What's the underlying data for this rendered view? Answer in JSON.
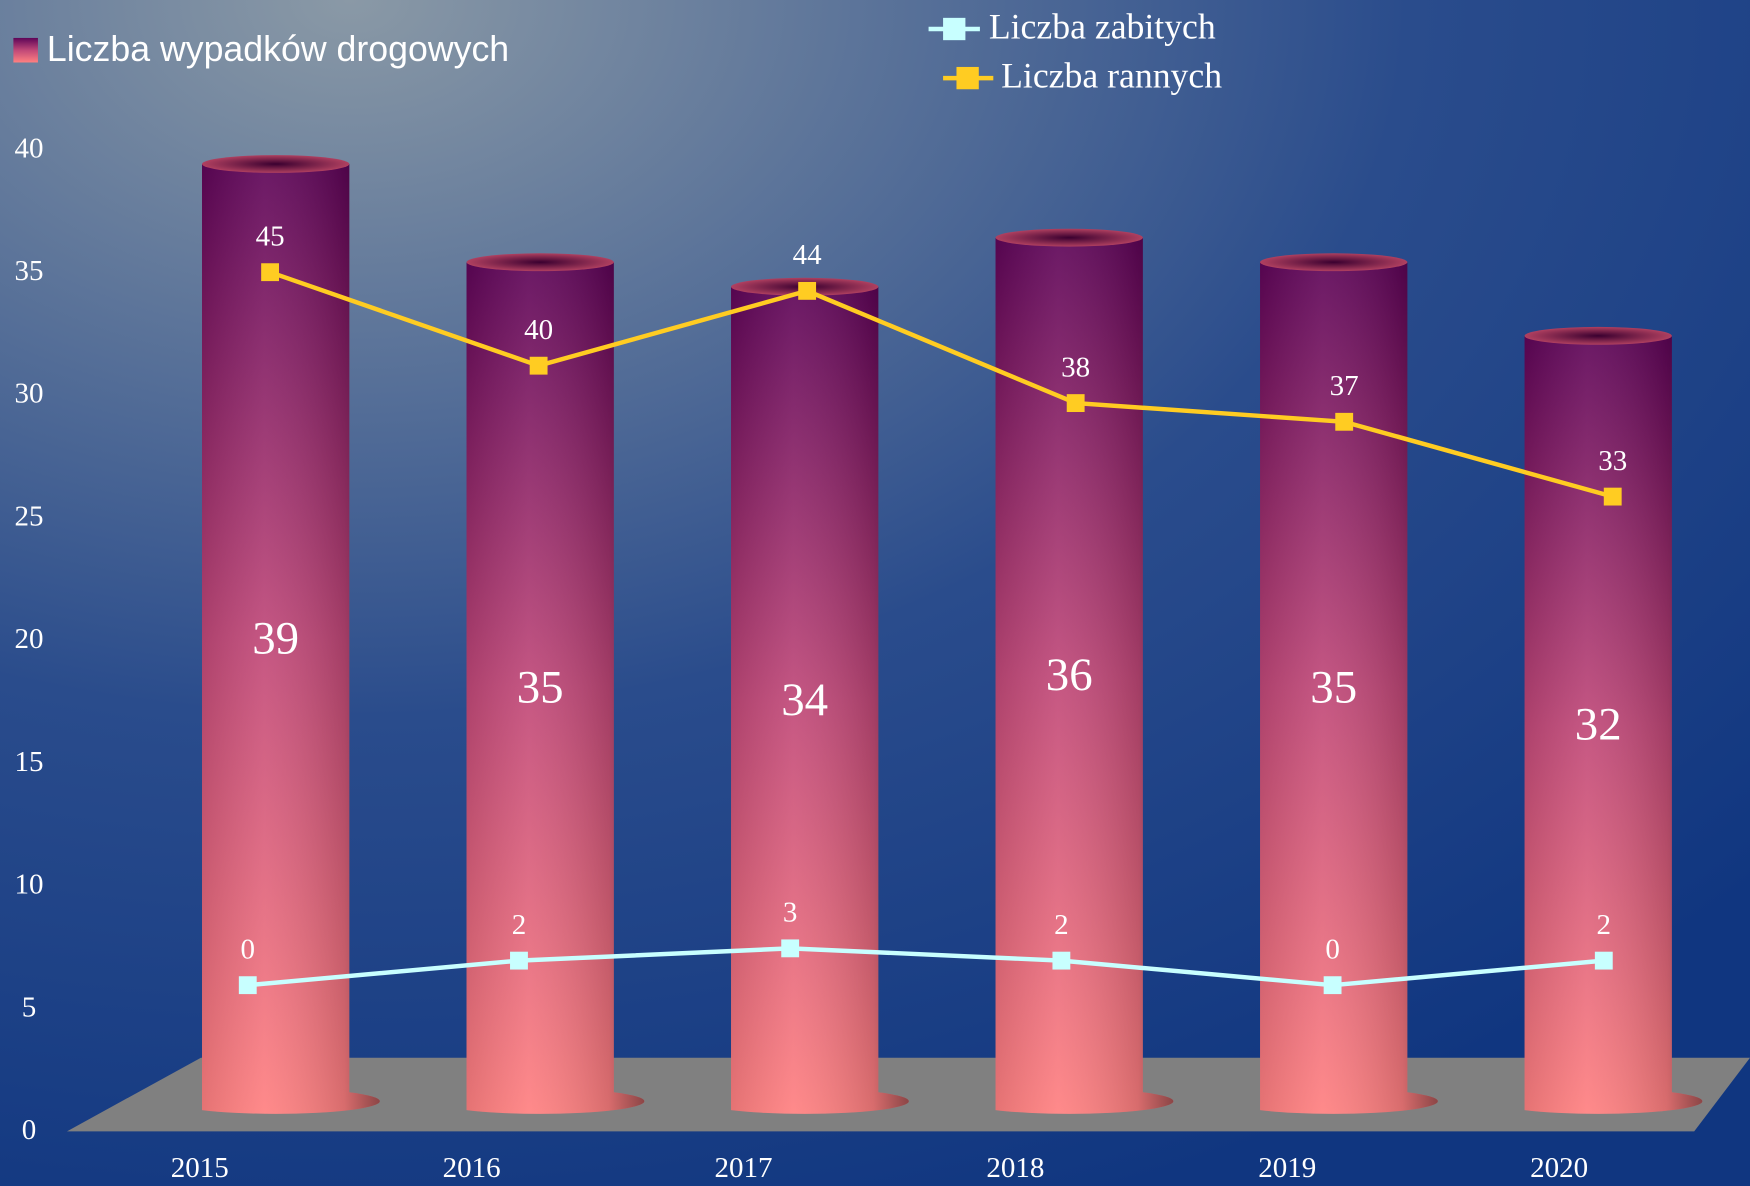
{
  "chart_data": {
    "type": "bar",
    "categories": [
      "2015",
      "2016",
      "2017",
      "2018",
      "2019",
      "2020"
    ],
    "ylim": [
      0,
      40
    ],
    "yticks": [
      0,
      5,
      10,
      15,
      20,
      25,
      30,
      35,
      40
    ],
    "y2lim": [
      -1,
      51.5
    ],
    "y3lim": [
      -12,
      68
    ],
    "series": [
      {
        "name": "Liczba wypadków drogowych",
        "type": "bar",
        "color": "#d05070",
        "values": [
          39,
          35,
          34,
          36,
          35,
          32
        ]
      },
      {
        "name": "Liczba zabitych",
        "type": "line",
        "axis": "y3",
        "color": "#c8ffff",
        "values": [
          0,
          2,
          3,
          2,
          0,
          2
        ]
      },
      {
        "name": "Liczba rannych",
        "type": "line",
        "axis": "y2",
        "color": "#ffcc22",
        "values": [
          45,
          40,
          44,
          38,
          37,
          33
        ]
      }
    ]
  }
}
